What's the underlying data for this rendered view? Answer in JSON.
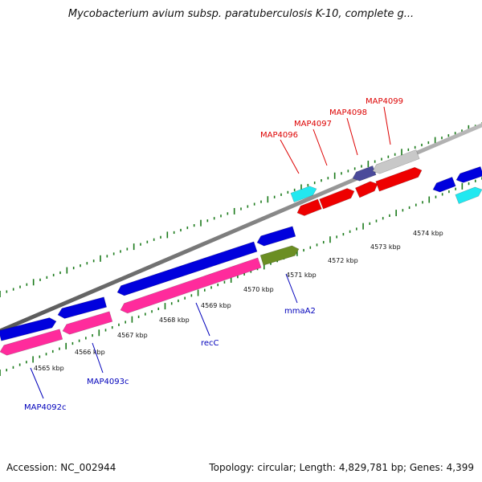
{
  "title": "Mycobacterium avium subsp. paratuberculosis K-10, complete g...",
  "accession_text": "Accession: NC_002944",
  "summary_text": "Topology: circular; Length: 4,829,781 bp; Genes: 4,399",
  "colors": {
    "backbone": "#808080",
    "tick": "#1a7a1a",
    "forward_blue": "#0000dd",
    "reverse_pink": "#ff2b9c",
    "red": "#ee0000",
    "cyan": "#22e8f0",
    "olive": "#6b8e23",
    "slate": "#4a4a9a",
    "gray": "#c8c8c8",
    "label_red": "#dd0000",
    "label_blue": "#0000bb"
  },
  "genome_map": {
    "tick_labels": [
      "4565 kbp",
      "4566 kbp",
      "4567 kbp",
      "4568 kbp",
      "4569 kbp",
      "4570 kbp",
      "4571 kbp",
      "4572 kbp",
      "4573 kbp",
      "4574 kbp"
    ],
    "genes": [
      {
        "name": "MAP4092c",
        "color": "reverse_pink",
        "labeled": true,
        "label_color": "label_blue"
      },
      {
        "name": "MAP4093c",
        "color": "reverse_pink",
        "labeled": true,
        "label_color": "label_blue"
      },
      {
        "name": "recC",
        "color": "reverse_pink",
        "labeled": true,
        "label_color": "label_blue"
      },
      {
        "name": "mmaA2",
        "color": "olive",
        "labeled": true,
        "label_color": "label_blue"
      },
      {
        "name": "MAP4096",
        "color": "cyan",
        "labeled": true,
        "label_color": "label_red"
      },
      {
        "name": "MAP4097",
        "color": "red",
        "labeled": true,
        "label_color": "label_red"
      },
      {
        "name": "MAP4098",
        "color": "red",
        "labeled": true,
        "label_color": "label_red"
      },
      {
        "name": "MAP4099",
        "color": "gray",
        "labeled": true,
        "label_color": "label_red"
      }
    ]
  }
}
